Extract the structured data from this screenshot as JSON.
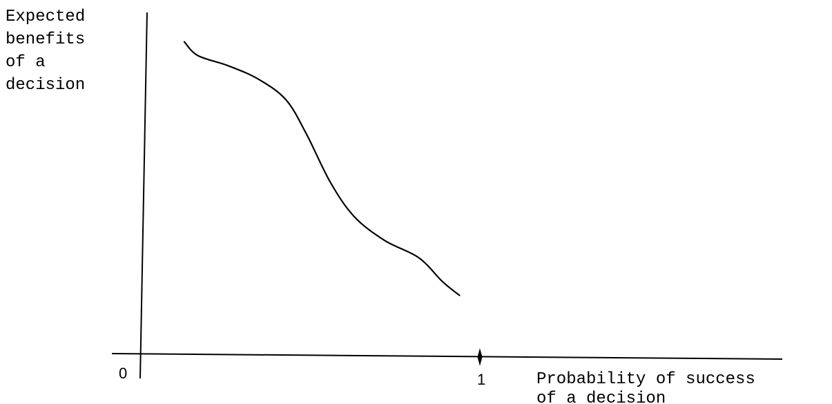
{
  "chart_data": {
    "type": "line",
    "ylabel_lines": [
      "Expected",
      "benefits",
      "of a",
      "decision"
    ],
    "xlabel_lines": [
      "Probability of success",
      "of a decision"
    ],
    "x_ticks": [
      {
        "value": 0,
        "label": "0"
      },
      {
        "value": 1,
        "label": "1"
      }
    ],
    "xlim": [
      0,
      1.9
    ],
    "ylim": [
      0,
      1
    ],
    "grid": false,
    "legend": "none",
    "series": [
      {
        "points": [
          [
            0.13,
            0.91
          ],
          [
            0.17,
            0.87
          ],
          [
            0.26,
            0.84
          ],
          [
            0.35,
            0.8
          ],
          [
            0.43,
            0.74
          ],
          [
            0.49,
            0.64
          ],
          [
            0.56,
            0.5
          ],
          [
            0.63,
            0.4
          ],
          [
            0.72,
            0.33
          ],
          [
            0.82,
            0.28
          ],
          [
            0.89,
            0.21
          ],
          [
            0.94,
            0.17
          ]
        ]
      }
    ],
    "colors": {
      "line": "#000000",
      "axis": "#000000",
      "background": "#ffffff"
    }
  }
}
